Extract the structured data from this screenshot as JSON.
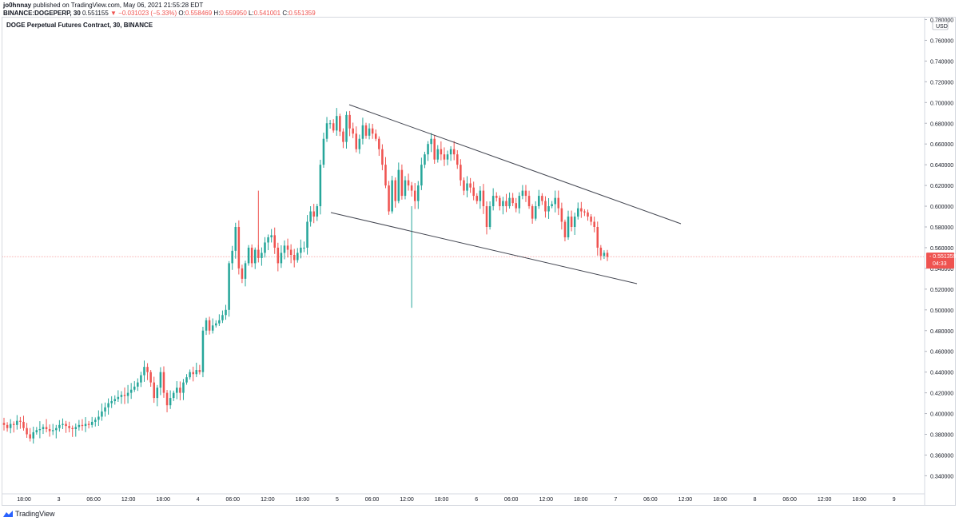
{
  "header": {
    "author": "jo0hnnay",
    "published": "published on TradingView.com, May 06, 2021 21:55:28 EDT",
    "symbol": "BINANCE:DOGEPERP, 30",
    "last": "0.551155",
    "change": "−0.031023 (−5.33%)",
    "o_label": "O:",
    "o_value": "0.558469",
    "h_label": "H:",
    "h_value": "0.559950",
    "l_label": "L:",
    "l_value": "0.541001",
    "c_label": "C:",
    "c_value": "0.551359"
  },
  "footer": {
    "brand": "TradingView"
  },
  "colors": {
    "up": "#26a69a",
    "down": "#ef5350",
    "axis_text": "#131722",
    "trendline": "#434651"
  },
  "chart_data": {
    "type": "candlestick",
    "title": "DOGE Perpetual Futures Contract, 30, BINANCE",
    "currency": "USD",
    "ylim": [
      0.33,
      0.78
    ],
    "yticks": [
      "0.780000",
      "0.760000",
      "0.740000",
      "0.720000",
      "0.700000",
      "0.680000",
      "0.660000",
      "0.640000",
      "0.620000",
      "0.600000",
      "0.580000",
      "0.560000",
      "0.540000",
      "0.520000",
      "0.500000",
      "0.480000",
      "0.460000",
      "0.440000",
      "0.420000",
      "0.400000",
      "0.380000",
      "0.360000",
      "0.340000"
    ],
    "xticks": [
      "18:00",
      "3",
      "06:00",
      "12:00",
      "18:00",
      "4",
      "06:00",
      "12:00",
      "18:00",
      "5",
      "06:00",
      "12:00",
      "18:00",
      "6",
      "06:00",
      "12:00",
      "18:00",
      "7",
      "06:00",
      "12:00",
      "18:00",
      "8",
      "06:00",
      "12:00",
      "18:00",
      "9"
    ],
    "current_price": "0.551359",
    "countdown": "04:33",
    "closes": [
      0.389,
      0.386,
      0.39,
      0.389,
      0.393,
      0.392,
      0.386,
      0.38,
      0.376,
      0.382,
      0.384,
      0.385,
      0.387,
      0.385,
      0.383,
      0.384,
      0.386,
      0.389,
      0.39,
      0.388,
      0.386,
      0.385,
      0.387,
      0.389,
      0.388,
      0.39,
      0.389,
      0.392,
      0.394,
      0.397,
      0.402,
      0.406,
      0.41,
      0.412,
      0.414,
      0.416,
      0.418,
      0.417,
      0.42,
      0.423,
      0.426,
      0.43,
      0.437,
      0.445,
      0.44,
      0.43,
      0.415,
      0.425,
      0.44,
      0.42,
      0.408,
      0.415,
      0.42,
      0.425,
      0.42,
      0.43,
      0.435,
      0.44,
      0.438,
      0.442,
      0.44,
      0.48,
      0.49,
      0.48,
      0.485,
      0.487,
      0.49,
      0.495,
      0.5,
      0.545,
      0.557,
      0.58,
      0.54,
      0.53,
      0.545,
      0.56,
      0.545,
      0.558,
      0.55,
      0.555,
      0.565,
      0.57,
      0.572,
      0.56,
      0.545,
      0.555,
      0.562,
      0.558,
      0.553,
      0.548,
      0.555,
      0.56,
      0.56,
      0.585,
      0.595,
      0.59,
      0.6,
      0.64,
      0.665,
      0.68,
      0.68,
      0.673,
      0.687,
      0.672,
      0.662,
      0.688,
      0.675,
      0.67,
      0.655,
      0.665,
      0.678,
      0.668,
      0.675,
      0.67,
      0.665,
      0.655,
      0.64,
      0.62,
      0.595,
      0.625,
      0.605,
      0.635,
      0.61,
      0.625,
      0.62,
      0.615,
      0.605,
      0.62,
      0.64,
      0.65,
      0.66,
      0.665,
      0.645,
      0.655,
      0.65,
      0.645,
      0.65,
      0.655,
      0.65,
      0.64,
      0.625,
      0.615,
      0.622,
      0.618,
      0.61,
      0.605,
      0.615,
      0.6,
      0.58,
      0.6,
      0.61,
      0.608,
      0.6,
      0.605,
      0.6,
      0.608,
      0.603,
      0.598,
      0.61,
      0.615,
      0.61,
      0.6,
      0.588,
      0.6,
      0.61,
      0.605,
      0.595,
      0.6,
      0.602,
      0.608,
      0.598,
      0.585,
      0.57,
      0.59,
      0.58,
      0.59,
      0.598,
      0.595,
      0.594,
      0.59,
      0.585,
      0.58,
      0.56,
      0.552,
      0.555,
      0.551
    ]
  }
}
